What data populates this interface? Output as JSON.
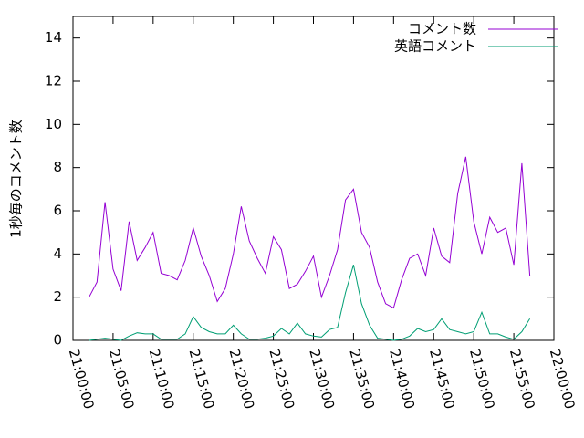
{
  "chart_data": {
    "type": "line",
    "y_label": "1秒毎のコメント数",
    "x": [
      "21:02:00",
      "21:03:00",
      "21:04:00",
      "21:05:00",
      "21:06:00",
      "21:07:00",
      "21:08:00",
      "21:09:00",
      "21:10:00",
      "21:11:00",
      "21:12:00",
      "21:13:00",
      "21:14:00",
      "21:15:00",
      "21:16:00",
      "21:17:00",
      "21:18:00",
      "21:19:00",
      "21:20:00",
      "21:21:00",
      "21:22:00",
      "21:23:00",
      "21:24:00",
      "21:25:00",
      "21:26:00",
      "21:27:00",
      "21:28:00",
      "21:29:00",
      "21:30:00",
      "21:31:00",
      "21:32:00",
      "21:33:00",
      "21:34:00",
      "21:35:00",
      "21:36:00",
      "21:37:00",
      "21:38:00",
      "21:39:00",
      "21:40:00",
      "21:41:00",
      "21:42:00",
      "21:43:00",
      "21:44:00",
      "21:45:00",
      "21:46:00",
      "21:47:00",
      "21:48:00",
      "21:49:00",
      "21:50:00",
      "21:51:00",
      "21:52:00",
      "21:53:00",
      "21:54:00",
      "21:55:00",
      "21:56:00",
      "21:57:00"
    ],
    "series": [
      {
        "name": "コメント数",
        "color": "#9400d3",
        "values": [
          2.0,
          2.7,
          6.4,
          3.3,
          2.3,
          5.5,
          3.7,
          4.3,
          5.0,
          3.1,
          3.0,
          2.8,
          3.7,
          5.2,
          3.9,
          3.0,
          1.8,
          2.4,
          4.0,
          6.2,
          4.6,
          3.8,
          3.1,
          4.8,
          4.2,
          2.4,
          2.6,
          3.2,
          3.9,
          2.0,
          3.0,
          4.2,
          6.5,
          7.0,
          5.0,
          4.3,
          2.7,
          1.7,
          1.5,
          2.8,
          3.8,
          4.0,
          3.0,
          5.2,
          3.9,
          3.6,
          6.8,
          8.5,
          5.5,
          4.0,
          5.7,
          5.0,
          5.2,
          3.5,
          8.2,
          3.0
        ]
      },
      {
        "name": "英語コメント",
        "color": "#009e73",
        "values": [
          0,
          0.05,
          0.1,
          0.05,
          0,
          0.2,
          0.35,
          0.3,
          0.3,
          0.05,
          0.05,
          0.05,
          0.3,
          1.1,
          0.6,
          0.4,
          0.3,
          0.3,
          0.7,
          0.3,
          0.05,
          0.05,
          0.1,
          0.2,
          0.55,
          0.3,
          0.8,
          0.3,
          0.2,
          0.15,
          0.5,
          0.6,
          2.2,
          3.5,
          1.7,
          0.7,
          0.1,
          0.05,
          0,
          0.05,
          0.2,
          0.55,
          0.4,
          0.5,
          1.0,
          0.5,
          0.4,
          0.3,
          0.4,
          1.3,
          0.3,
          0.3,
          0.15,
          0.05,
          0.4,
          1.0
        ]
      }
    ],
    "xlim": [
      "21:00:00",
      "22:00:00"
    ],
    "xticks": [
      "21:00:00",
      "21:05:00",
      "21:10:00",
      "21:15:00",
      "21:20:00",
      "21:25:00",
      "21:30:00",
      "21:35:00",
      "21:40:00",
      "21:45:00",
      "21:50:00",
      "21:55:00",
      "22:00:00"
    ],
    "ylim": [
      0,
      15
    ],
    "yticks": [
      0,
      2,
      4,
      6,
      8,
      10,
      12,
      14
    ],
    "legend": "top-right"
  }
}
